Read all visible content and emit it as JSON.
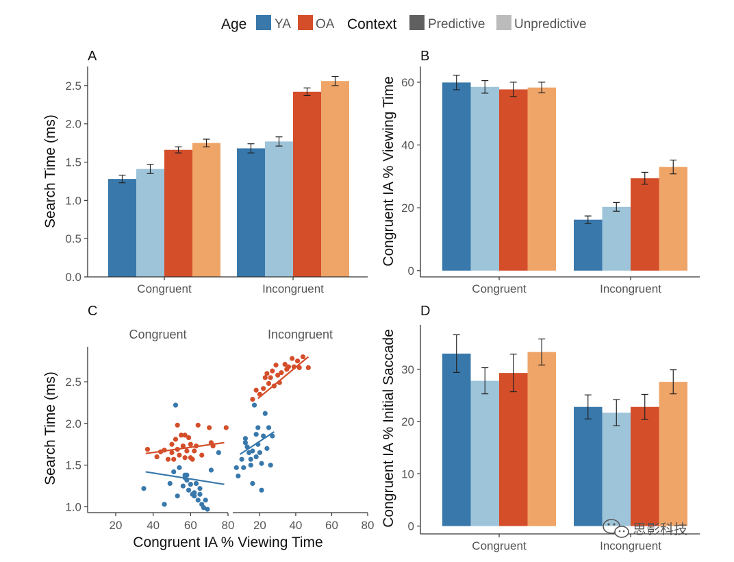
{
  "legend": {
    "age_title": "Age",
    "context_title": "Context",
    "items": [
      {
        "label": "YA",
        "color": "#3878ab",
        "group": "age"
      },
      {
        "label": "OA",
        "color": "#d44e2a",
        "group": "age"
      },
      {
        "label": "Predictive",
        "color": "#606060",
        "group": "context"
      },
      {
        "label": "Unpredictive",
        "color": "#bbbbbb",
        "group": "context"
      }
    ]
  },
  "colors": {
    "YA_predictive": "#3878ab",
    "YA_unpredictive": "#9ec4d9",
    "OA_predictive": "#d44e2a",
    "OA_unpredictive": "#efa468"
  },
  "watermark": "思影科技",
  "chart_data": [
    {
      "panel": "A",
      "type": "bar",
      "ylabel": "Search Time (ms)",
      "xlabel": "",
      "ylim": [
        0,
        2.75
      ],
      "yticks": [
        0.0,
        0.5,
        1.0,
        1.5,
        2.0,
        2.5
      ],
      "ytick_labels": [
        "0.0",
        "0.5",
        "1.0",
        "1.5",
        "2.0",
        "2.5"
      ],
      "categories": [
        "Congruent",
        "Incongruent"
      ],
      "series": [
        {
          "key": "YA_predictive",
          "values": [
            1.28,
            1.68
          ],
          "err": [
            0.05,
            0.06
          ]
        },
        {
          "key": "YA_unpredictive",
          "values": [
            1.41,
            1.77
          ],
          "err": [
            0.06,
            0.06
          ]
        },
        {
          "key": "OA_predictive",
          "values": [
            1.66,
            2.42
          ],
          "err": [
            0.04,
            0.05
          ]
        },
        {
          "key": "OA_unpredictive",
          "values": [
            1.75,
            2.56
          ],
          "err": [
            0.05,
            0.06
          ]
        }
      ]
    },
    {
      "panel": "B",
      "type": "bar",
      "ylabel": "Congruent IA % Viewing Time",
      "xlabel": "",
      "ylim": [
        -2,
        65
      ],
      "yticks": [
        0,
        20,
        40,
        60
      ],
      "ytick_labels": [
        "0",
        "20",
        "40",
        "60"
      ],
      "categories": [
        "Congruent",
        "Incongruent"
      ],
      "series": [
        {
          "key": "YA_predictive",
          "values": [
            59.9,
            16.2
          ],
          "err": [
            2.3,
            1.2
          ]
        },
        {
          "key": "YA_unpredictive",
          "values": [
            58.5,
            20.3
          ],
          "err": [
            2.0,
            1.4
          ]
        },
        {
          "key": "OA_predictive",
          "values": [
            57.7,
            29.4
          ],
          "err": [
            2.3,
            1.9
          ]
        },
        {
          "key": "OA_unpredictive",
          "values": [
            58.3,
            33.0
          ],
          "err": [
            1.7,
            2.2
          ]
        }
      ]
    },
    {
      "panel": "C",
      "type": "scatter",
      "ylabel": "Search Time (ms)",
      "xlabel": "Congruent IA % Viewing Time",
      "xlim": [
        5,
        80
      ],
      "ylim": [
        0.93,
        2.92
      ],
      "xticks": [
        20,
        40,
        60,
        80
      ],
      "xtick_labels": [
        "20",
        "40",
        "60",
        "80"
      ],
      "yticks": [
        1.0,
        1.5,
        2.0,
        2.5
      ],
      "ytick_labels": [
        "1.0",
        "1.5",
        "2.0",
        "2.5"
      ],
      "facets": [
        {
          "label": "Congruent",
          "series": [
            {
              "key": "OA_predictive",
              "points": [
                [
                  37,
                  1.69
                ],
                [
                  42,
                  1.6
                ],
                [
                  44,
                  1.66
                ],
                [
                  46,
                  1.68
                ],
                [
                  48,
                  1.57
                ],
                [
                  50,
                  1.65
                ],
                [
                  50,
                  1.75
                ],
                [
                  51,
                  1.57
                ],
                [
                  52,
                  1.81
                ],
                [
                  53,
                  1.69
                ],
                [
                  53,
                  1.98
                ],
                [
                  54,
                  1.62
                ],
                [
                  55,
                  1.86
                ],
                [
                  56,
                  1.73
                ],
                [
                  57,
                  1.86
                ],
                [
                  57,
                  1.59
                ],
                [
                  58,
                  1.67
                ],
                [
                  59,
                  1.83
                ],
                [
                  60,
                  1.75
                ],
                [
                  60,
                  1.59
                ],
                [
                  61,
                  1.57
                ],
                [
                  62,
                  1.67
                ],
                [
                  63,
                  1.73
                ],
                [
                  64,
                  1.98
                ],
                [
                  66,
                  1.62
                ],
                [
                  70,
                  1.95
                ],
                [
                  71,
                  1.77
                ],
                [
                  72,
                  1.73
                ],
                [
                  79,
                  1.95
                ]
              ],
              "fit": [
                [
                  36,
                  1.64
                ],
                [
                  78,
                  1.77
                ]
              ]
            },
            {
              "key": "YA_predictive",
              "points": [
                [
                  35,
                  1.22
                ],
                [
                  46,
                  1.03
                ],
                [
                  49,
                  1.28
                ],
                [
                  51,
                  1.42
                ],
                [
                  52,
                  2.22
                ],
                [
                  53,
                  1.13
                ],
                [
                  54,
                  1.47
                ],
                [
                  56,
                  1.25
                ],
                [
                  57,
                  1.38
                ],
                [
                  57,
                  1.35
                ],
                [
                  58,
                  1.32
                ],
                [
                  58,
                  1.38
                ],
                [
                  59,
                  1.2
                ],
                [
                  60,
                  1.27
                ],
                [
                  61,
                  1.15
                ],
                [
                  62,
                  1.13
                ],
                [
                  62,
                  1.17
                ],
                [
                  63,
                  1.28
                ],
                [
                  64,
                  1.08
                ],
                [
                  65,
                  1.22
                ],
                [
                  65,
                  1.15
                ],
                [
                  66,
                  1.03
                ],
                [
                  67,
                  0.99
                ],
                [
                  68,
                  1.08
                ],
                [
                  69,
                  0.97
                ],
                [
                  71,
                  1.44
                ],
                [
                  75,
                  1.65
                ]
              ],
              "fit": [
                [
                  36,
                  1.42
                ],
                [
                  78,
                  1.27
                ]
              ]
            }
          ]
        },
        {
          "label": "Incongruent",
          "series": [
            {
              "key": "OA_predictive",
              "points": [
                [
                  16,
                  2.29
                ],
                [
                  18,
                  2.4
                ],
                [
                  20,
                  2.35
                ],
                [
                  22,
                  2.42
                ],
                [
                  23,
                  2.55
                ],
                [
                  24,
                  2.6
                ],
                [
                  25,
                  2.48
                ],
                [
                  26,
                  2.55
                ],
                [
                  27,
                  2.63
                ],
                [
                  28,
                  2.45
                ],
                [
                  29,
                  2.7
                ],
                [
                  30,
                  2.58
                ],
                [
                  31,
                  2.49
                ],
                [
                  32,
                  2.61
                ],
                [
                  34,
                  2.71
                ],
                [
                  35,
                  2.65
                ],
                [
                  36,
                  2.68
                ],
                [
                  38,
                  2.78
                ],
                [
                  39,
                  2.68
                ],
                [
                  41,
                  2.75
                ],
                [
                  42,
                  2.67
                ],
                [
                  44,
                  2.8
                ],
                [
                  47,
                  2.67
                ]
              ],
              "fit": [
                [
                  19,
                  2.3
                ],
                [
                  47,
                  2.8
                ]
              ]
            },
            {
              "key": "YA_predictive",
              "points": [
                [
                  7,
                  1.47
                ],
                [
                  8,
                  1.37
                ],
                [
                  10,
                  1.57
                ],
                [
                  11,
                  1.47
                ],
                [
                  12,
                  1.77
                ],
                [
                  12,
                  1.82
                ],
                [
                  13,
                  1.72
                ],
                [
                  14,
                  1.65
                ],
                [
                  15,
                  1.57
                ],
                [
                  15,
                  1.5
                ],
                [
                  16,
                  1.67
                ],
                [
                  16,
                  1.28
                ],
                [
                  17,
                  2.22
                ],
                [
                  18,
                  1.87
                ],
                [
                  18,
                  1.6
                ],
                [
                  19,
                  1.95
                ],
                [
                  19,
                  1.75
                ],
                [
                  20,
                  1.65
                ],
                [
                  21,
                  1.52
                ],
                [
                  21,
                  1.2
                ],
                [
                  22,
                  1.85
                ],
                [
                  23,
                  2.12
                ],
                [
                  24,
                  1.7
                ],
                [
                  25,
                  1.95
                ],
                [
                  26,
                  1.5
                ],
                [
                  27,
                  1.85
                ]
              ],
              "fit": [
                [
                  9,
                  1.63
                ],
                [
                  28,
                  1.9
                ]
              ]
            }
          ]
        }
      ]
    },
    {
      "panel": "D",
      "type": "bar",
      "ylabel": "Congruent IA % Initial Saccade",
      "xlabel": "",
      "ylim": [
        -1.5,
        38.5
      ],
      "yticks": [
        0,
        10,
        20,
        30
      ],
      "ytick_labels": [
        "0",
        "10",
        "20",
        "30"
      ],
      "categories": [
        "Congruent",
        "Incongruent"
      ],
      "series": [
        {
          "key": "YA_predictive",
          "values": [
            33.0,
            22.8
          ],
          "err": [
            3.6,
            2.3
          ]
        },
        {
          "key": "YA_unpredictive",
          "values": [
            27.8,
            21.7
          ],
          "err": [
            2.5,
            2.5
          ]
        },
        {
          "key": "OA_predictive",
          "values": [
            29.3,
            22.8
          ],
          "err": [
            3.6,
            2.4
          ]
        },
        {
          "key": "OA_unpredictive",
          "values": [
            33.3,
            27.6
          ],
          "err": [
            2.5,
            2.3
          ]
        }
      ]
    }
  ]
}
